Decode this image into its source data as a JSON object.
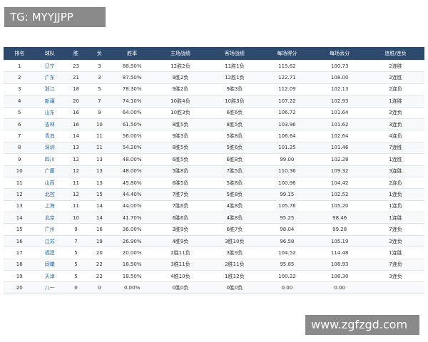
{
  "watermark_top": "TG: MYYJJPP",
  "watermark_bottom": "www.zgfzgd.com",
  "table": {
    "header": [
      "排名",
      "球队",
      "胜",
      "负",
      "胜率",
      "主场战绩",
      "客场战绩",
      "每场得分",
      "每场丢分",
      "连胜/连负"
    ],
    "rows": [
      [
        "1",
        "辽宁",
        "23",
        "3",
        "88.50%",
        "12胜2负",
        "11胜1负",
        "115.62",
        "100.73",
        "2连胜"
      ],
      [
        "2",
        "广东",
        "21",
        "3",
        "87.50%",
        "9胜2负",
        "12胜1负",
        "122.71",
        "108.00",
        "2连胜"
      ],
      [
        "3",
        "浙江",
        "18",
        "5",
        "78.30%",
        "9胜2负",
        "9胜3负",
        "112.09",
        "102.13",
        "2连负"
      ],
      [
        "4",
        "新疆",
        "20",
        "7",
        "74.10%",
        "10胜4负",
        "10胜3负",
        "107.22",
        "102.93",
        "1连胜"
      ],
      [
        "5",
        "山东",
        "16",
        "9",
        "64.00%",
        "10胜3负",
        "6胜6负",
        "106.72",
        "101.64",
        "2连负"
      ],
      [
        "6",
        "吉林",
        "16",
        "10",
        "61.50%",
        "8胜5负",
        "8胜5负",
        "103.96",
        "101.62",
        "3连负"
      ],
      [
        "7",
        "青岛",
        "14",
        "11",
        "56.00%",
        "9胜3负",
        "5胜8负",
        "106.64",
        "102.64",
        "4连负"
      ],
      [
        "8",
        "深圳",
        "13",
        "11",
        "54.20%",
        "8胜5负",
        "5胜6负",
        "101.25",
        "101.46",
        "7连胜"
      ],
      [
        "9",
        "四川",
        "12",
        "13",
        "48.00%",
        "6胜5负",
        "6胜8负",
        "99.00",
        "102.28",
        "1连胜"
      ],
      [
        "10",
        "广厦",
        "12",
        "13",
        "48.00%",
        "5胜8负",
        "7胜5负",
        "110.36",
        "109.32",
        "3连胜"
      ],
      [
        "11",
        "山西",
        "11",
        "13",
        "45.80%",
        "6胜5负",
        "5胜8负",
        "100.96",
        "104.42",
        "2连负"
      ],
      [
        "12",
        "北控",
        "12",
        "15",
        "44.40%",
        "7胜7负",
        "5胜8负",
        "99.15",
        "102.52",
        "1连负"
      ],
      [
        "13",
        "上海",
        "11",
        "14",
        "44.00%",
        "7胜6负",
        "4胜8负",
        "105.76",
        "105.20",
        "1连负"
      ],
      [
        "14",
        "北京",
        "10",
        "14",
        "41.70%",
        "6胜6负",
        "4胜8负",
        "95.25",
        "98.46",
        "1连胜"
      ],
      [
        "15",
        "广州",
        "9",
        "16",
        "36.00%",
        "3胜9负",
        "6胜7负",
        "98.04",
        "99.28",
        "7连负"
      ],
      [
        "16",
        "江苏",
        "7",
        "19",
        "26.90%",
        "4胜9负",
        "3胜10负",
        "96.58",
        "105.19",
        "2连负"
      ],
      [
        "17",
        "福建",
        "5",
        "20",
        "20.00%",
        "2胜11负",
        "3胜9负",
        "104.52",
        "114.48",
        "1连胜"
      ],
      [
        "18",
        "同曦",
        "5",
        "22",
        "18.50%",
        "3胜11负",
        "2胜11负",
        "95.85",
        "108.93",
        "7连负"
      ],
      [
        "19",
        "天津",
        "5",
        "22",
        "18.50%",
        "4胜10负",
        "1胜12负",
        "100.22",
        "108.30",
        "3连负"
      ],
      [
        "20",
        "八一",
        "0",
        "0",
        "0.00%",
        "0胜0负",
        "0胜0负",
        "0.00",
        "0.00"
      ]
    ]
  }
}
